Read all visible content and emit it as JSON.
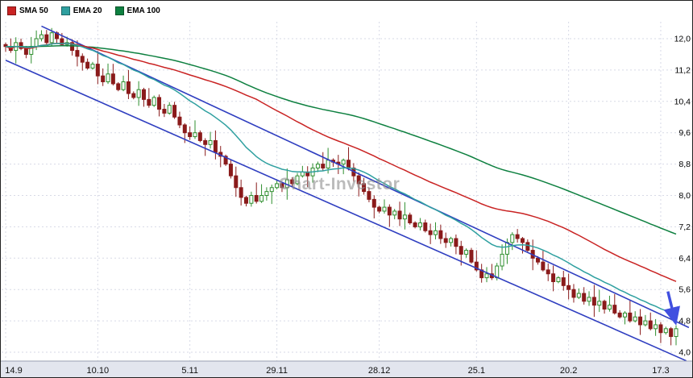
{
  "watermark": "Chart-Investor",
  "legend": {
    "items": [
      {
        "label": "SMA 50",
        "color": "#c92323"
      },
      {
        "label": "EMA 20",
        "color": "#2fa0a0"
      },
      {
        "label": "EMA 100",
        "color": "#0e8040"
      }
    ]
  },
  "chart_data": {
    "type": "candlestick",
    "title": "",
    "ylim": [
      3.8,
      12.5
    ],
    "grid": true,
    "colors": {
      "up_candle": "#2f8f2f",
      "down_candle": "#8a1b1b",
      "grid": "#d7dae6",
      "axis_strip_bg": "#e2e5ee",
      "axis_strip_border": "#9aa0b2"
    },
    "y_ticks": [
      {
        "value": 12.0,
        "label": "12,0"
      },
      {
        "value": 11.2,
        "label": "11,2"
      },
      {
        "value": 10.4,
        "label": "10,4"
      },
      {
        "value": 9.6,
        "label": "9,6"
      },
      {
        "value": 8.8,
        "label": "8,8"
      },
      {
        "value": 8.0,
        "label": "8,0"
      },
      {
        "value": 7.2,
        "label": "7,2"
      },
      {
        "value": 6.4,
        "label": "6,4"
      },
      {
        "value": 5.6,
        "label": "5,6"
      },
      {
        "value": 4.8,
        "label": "4,8"
      },
      {
        "value": 4.0,
        "label": "4,0"
      }
    ],
    "x_axis": [
      {
        "day": 0,
        "label": "14.9"
      },
      {
        "day": 18,
        "label": "10.10"
      },
      {
        "day": 36,
        "label": "5.11"
      },
      {
        "day": 53,
        "label": "29.11"
      },
      {
        "day": 73,
        "label": "28.12"
      },
      {
        "day": 92,
        "label": "25.1"
      },
      {
        "day": 110,
        "label": "20.2"
      },
      {
        "day": 128,
        "label": "17.3"
      }
    ],
    "closes": [
      11.8,
      11.7,
      11.9,
      11.75,
      11.6,
      11.8,
      12.0,
      12.1,
      11.9,
      12.15,
      12.0,
      11.85,
      11.9,
      11.7,
      11.55,
      11.4,
      11.25,
      11.35,
      11.05,
      10.9,
      11.1,
      10.85,
      10.7,
      10.9,
      10.6,
      10.5,
      10.7,
      10.45,
      10.3,
      10.5,
      10.2,
      10.1,
      10.3,
      10.0,
      9.8,
      9.6,
      9.5,
      9.6,
      9.4,
      9.3,
      9.4,
      9.1,
      9.0,
      8.8,
      8.5,
      8.2,
      7.95,
      7.8,
      8.0,
      7.85,
      8.0,
      8.1,
      8.2,
      8.3,
      8.2,
      8.4,
      8.3,
      8.5,
      8.6,
      8.5,
      8.7,
      8.8,
      8.7,
      8.9,
      8.85,
      8.8,
      8.9,
      8.7,
      8.5,
      8.3,
      8.1,
      7.9,
      7.7,
      7.6,
      7.7,
      7.5,
      7.6,
      7.4,
      7.5,
      7.3,
      7.2,
      7.3,
      7.1,
      7.0,
      7.1,
      6.9,
      6.8,
      6.9,
      6.7,
      6.5,
      6.6,
      6.3,
      6.1,
      5.9,
      6.0,
      5.9,
      6.2,
      6.5,
      6.8,
      7.0,
      6.9,
      6.8,
      6.6,
      6.4,
      6.3,
      6.1,
      6.0,
      5.8,
      5.9,
      5.7,
      5.6,
      5.4,
      5.5,
      5.3,
      5.4,
      5.2,
      5.3,
      5.1,
      5.2,
      5.0,
      4.9,
      5.0,
      4.8,
      4.9,
      4.7,
      4.8,
      4.6,
      4.7,
      4.5,
      4.6,
      4.4,
      4.6
    ],
    "indicators": [
      {
        "label": "SMA 50",
        "method": "sma",
        "period": 50,
        "color": "#c92323"
      },
      {
        "label": "EMA 20",
        "method": "ema",
        "period": 20,
        "color": "#2fa0a0"
      },
      {
        "label": "EMA 100",
        "method": "ema",
        "period": 100,
        "color": "#0e8040"
      }
    ],
    "trend_channel": {
      "color": "#2f3ec0",
      "lines": [
        {
          "d1": 7,
          "p1": 12.32,
          "d2": 133.5,
          "p2": 4.63
        },
        {
          "d1": 0,
          "p1": 11.45,
          "d2": 133.0,
          "p2": 3.78
        }
      ]
    },
    "arrow": {
      "day_from": 129.4,
      "price_from": 5.55,
      "day_to": 130.9,
      "price_to": 4.75,
      "color": "#4150e0"
    }
  }
}
